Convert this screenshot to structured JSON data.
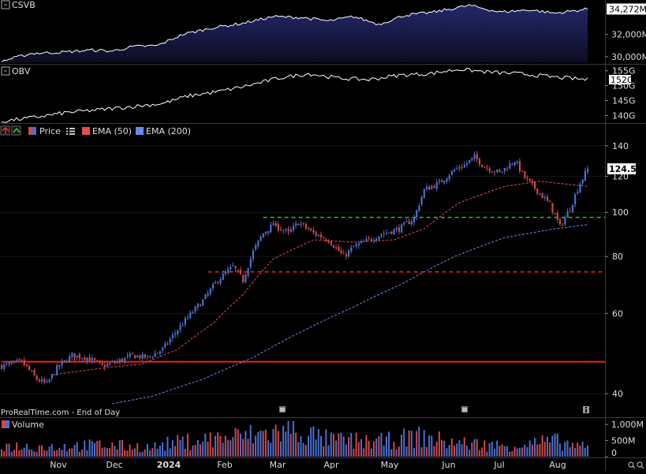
{
  "panels": {
    "csvb": {
      "label": "CSVB",
      "ticks": [
        "34,272M",
        "32,000M",
        "30,000M"
      ],
      "last_value": "34,272M",
      "fill": "#1a1c4a",
      "line": "#ffffff"
    },
    "obv": {
      "label": "OBV",
      "ticks": [
        "155G",
        "152G",
        "150G",
        "145G",
        "140G"
      ],
      "last_value": "152G",
      "line": "#ffffff"
    },
    "price": {
      "legend": [
        {
          "name": "Price",
          "color": "#d04848",
          "color2": "#4a6fd0"
        },
        {
          "name": "EMA (50)",
          "color": "#e05050"
        },
        {
          "name": "EMA (200)",
          "color": "#6a8ae8"
        }
      ],
      "ticks": [
        "140",
        "120",
        "100",
        "80",
        "60",
        "40"
      ],
      "last_price": "124.58",
      "source": "ProRealTime.com - End of Day"
    },
    "volume": {
      "label": "Volume",
      "ticks": [
        "1,000M",
        "500M",
        "0"
      ]
    }
  },
  "x_axis": {
    "labels": [
      "Nov",
      "Dec",
      "2024",
      "Feb",
      "Mar",
      "Apr",
      "May",
      "Jun",
      "Jul",
      "Aug"
    ]
  },
  "chart_data": {
    "type": "candlestick",
    "y_scale": "log",
    "ylim": [
      38,
      145
    ],
    "price_anchors": [
      [
        0,
        46
      ],
      [
        8,
        47
      ],
      [
        14,
        43
      ],
      [
        18,
        42
      ],
      [
        22,
        45.5
      ],
      [
        28,
        48.5
      ],
      [
        34,
        48
      ],
      [
        40,
        46
      ],
      [
        46,
        47
      ],
      [
        52,
        48.5
      ],
      [
        58,
        48
      ],
      [
        64,
        50
      ],
      [
        72,
        57
      ],
      [
        80,
        64
      ],
      [
        86,
        71
      ],
      [
        92,
        76
      ],
      [
        96,
        71
      ],
      [
        100,
        82
      ],
      [
        104,
        90
      ],
      [
        108,
        94
      ],
      [
        114,
        90
      ],
      [
        118,
        95
      ],
      [
        124,
        90
      ],
      [
        130,
        87
      ],
      [
        136,
        80
      ],
      [
        140,
        84
      ],
      [
        146,
        87
      ],
      [
        152,
        90
      ],
      [
        158,
        92
      ],
      [
        164,
        97
      ],
      [
        168,
        112
      ],
      [
        174,
        116
      ],
      [
        180,
        124
      ],
      [
        184,
        127
      ],
      [
        188,
        132
      ],
      [
        192,
        126
      ],
      [
        198,
        122
      ],
      [
        204,
        130
      ],
      [
        208,
        119
      ],
      [
        214,
        110
      ],
      [
        218,
        104
      ],
      [
        222,
        93
      ],
      [
        226,
        102
      ],
      [
        230,
        116
      ],
      [
        233,
        124.58
      ]
    ],
    "ema50_anchors": [
      [
        20,
        44
      ],
      [
        40,
        45.5
      ],
      [
        56,
        46.5
      ],
      [
        70,
        50
      ],
      [
        84,
        57
      ],
      [
        96,
        66
      ],
      [
        108,
        79
      ],
      [
        124,
        87
      ],
      [
        140,
        86
      ],
      [
        156,
        87
      ],
      [
        168,
        92
      ],
      [
        182,
        105
      ],
      [
        200,
        114
      ],
      [
        214,
        117
      ],
      [
        233,
        114
      ]
    ],
    "ema200_anchors": [
      [
        44,
        38
      ],
      [
        60,
        39.5
      ],
      [
        80,
        43
      ],
      [
        100,
        48
      ],
      [
        120,
        55
      ],
      [
        140,
        62
      ],
      [
        160,
        70
      ],
      [
        180,
        80
      ],
      [
        200,
        88
      ],
      [
        220,
        92
      ],
      [
        233,
        94
      ]
    ],
    "levels": [
      {
        "price": 97.5,
        "color": "#22cc22",
        "style": "dashed",
        "x_start": 104
      },
      {
        "price": 74,
        "color": "#ee2222",
        "style": "dashed",
        "x_start": 82
      },
      {
        "price": 47,
        "color": "#ee2222",
        "style": "solid",
        "x_start": 0
      }
    ],
    "csvb_anchors": [
      [
        0,
        29600
      ],
      [
        12,
        30300
      ],
      [
        24,
        30400
      ],
      [
        36,
        30600
      ],
      [
        44,
        30500
      ],
      [
        52,
        30900
      ],
      [
        62,
        31000
      ],
      [
        72,
        32000
      ],
      [
        84,
        32600
      ],
      [
        96,
        33000
      ],
      [
        108,
        33600
      ],
      [
        120,
        33500
      ],
      [
        130,
        33200
      ],
      [
        140,
        33600
      ],
      [
        150,
        32900
      ],
      [
        160,
        33700
      ],
      [
        172,
        34000
      ],
      [
        186,
        34600
      ],
      [
        198,
        34000
      ],
      [
        210,
        34200
      ],
      [
        220,
        33900
      ],
      [
        233,
        34272
      ]
    ],
    "obv_anchors": [
      [
        0,
        138
      ],
      [
        14,
        139.5
      ],
      [
        26,
        141
      ],
      [
        40,
        142
      ],
      [
        52,
        143
      ],
      [
        64,
        144
      ],
      [
        74,
        146.5
      ],
      [
        86,
        148
      ],
      [
        98,
        150
      ],
      [
        110,
        152.5
      ],
      [
        122,
        154
      ],
      [
        134,
        152.5
      ],
      [
        146,
        152
      ],
      [
        158,
        153.5
      ],
      [
        170,
        154
      ],
      [
        182,
        155.5
      ],
      [
        194,
        154.5
      ],
      [
        206,
        154
      ],
      [
        218,
        153
      ],
      [
        233,
        152
      ]
    ],
    "volume_anchors": [
      [
        0,
        350
      ],
      [
        20,
        320
      ],
      [
        40,
        380
      ],
      [
        60,
        300
      ],
      [
        66,
        420
      ],
      [
        80,
        550
      ],
      [
        100,
        700
      ],
      [
        116,
        850
      ],
      [
        130,
        550
      ],
      [
        150,
        480
      ],
      [
        166,
        650
      ],
      [
        180,
        450
      ],
      [
        200,
        350
      ],
      [
        220,
        500
      ],
      [
        233,
        280
      ]
    ],
    "volume_ylim": [
      0,
      1150
    ]
  }
}
